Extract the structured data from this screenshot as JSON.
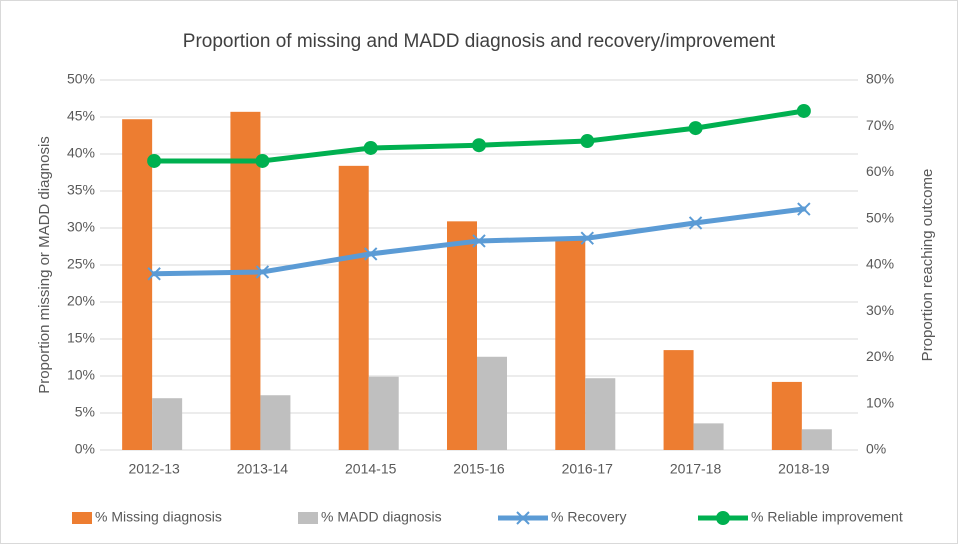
{
  "chart_data": {
    "type": "bar",
    "title": "Proportion of missing and MADD diagnosis and recovery/improvement",
    "y_label": "Proportion missing or MADD diagnosis",
    "y2_label": "Proportion reaching outcome",
    "categories": [
      "2012-13",
      "2013-14",
      "2014-15",
      "2015-16",
      "2016-17",
      "2017-18",
      "2018-19"
    ],
    "series": [
      {
        "name": "% Missing diagnosis",
        "type": "bar",
        "color": "#ed7d31",
        "values": [
          44.7,
          45.7,
          38.4,
          30.9,
          28.8,
          13.5,
          9.2
        ]
      },
      {
        "name": "% MADD diagnosis",
        "type": "bar",
        "color": "#bfbfbf",
        "values": [
          7.0,
          7.4,
          9.9,
          12.6,
          9.7,
          3.6,
          2.8
        ]
      },
      {
        "name": "% Recovery",
        "type": "line",
        "marker": "x",
        "axis": "y2",
        "color": "#5b9bd5",
        "values": [
          38.1,
          38.5,
          42.4,
          45.2,
          45.8,
          49.1,
          52.1
        ]
      },
      {
        "name": "% Reliable improvement",
        "type": "line",
        "marker": "circle",
        "axis": "y2",
        "color": "#00b050",
        "values": [
          62.5,
          62.5,
          65.3,
          65.9,
          66.8,
          69.6,
          73.3
        ]
      }
    ],
    "ylim": [
      0,
      50
    ],
    "yticks": [
      {
        "value": 0,
        "label": "0%"
      },
      {
        "value": 5,
        "label": "5%"
      },
      {
        "value": 10,
        "label": "10%"
      },
      {
        "value": 15,
        "label": "15%"
      },
      {
        "value": 20,
        "label": "20%"
      },
      {
        "value": 25,
        "label": "25%"
      },
      {
        "value": 30,
        "label": "30%"
      },
      {
        "value": 35,
        "label": "35%"
      },
      {
        "value": 40,
        "label": "40%"
      },
      {
        "value": 45,
        "label": "45%"
      },
      {
        "value": 50,
        "label": "50%"
      }
    ],
    "y2lim": [
      0,
      80
    ],
    "y2ticks": [
      {
        "value": 0,
        "label": "0%"
      },
      {
        "value": 10,
        "label": "10%"
      },
      {
        "value": 20,
        "label": "20%"
      },
      {
        "value": 30,
        "label": "30%"
      },
      {
        "value": 40,
        "label": "40%"
      },
      {
        "value": 50,
        "label": "50%"
      },
      {
        "value": 60,
        "label": "60%"
      },
      {
        "value": 70,
        "label": "70%"
      },
      {
        "value": 80,
        "label": "80%"
      }
    ],
    "grid": true,
    "legend": "bottom"
  }
}
